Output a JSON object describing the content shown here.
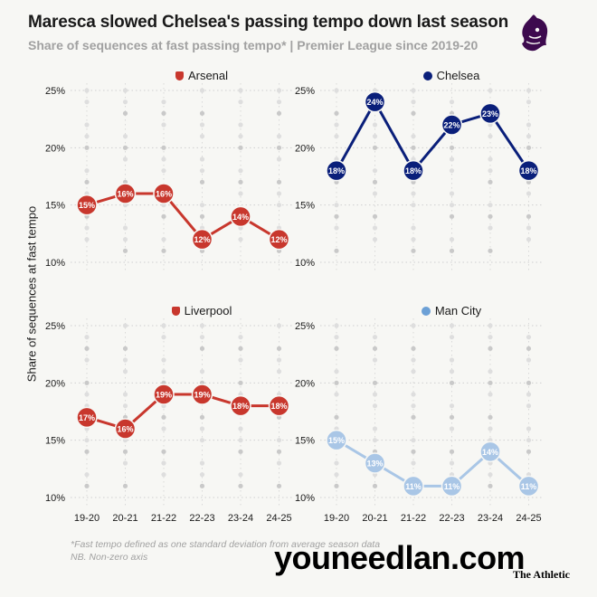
{
  "title": "Maresca slowed Chelsea's passing tempo down last season",
  "subtitle": "Share of sequences at fast passing tempo* | Premier League since 2019-20",
  "notes": {
    "line1": "*Fast tempo defined as one standard deviation from average season data",
    "line2": "NB. Non-zero axis"
  },
  "watermark": "youneedlan.com",
  "brand": "The Athletic",
  "icons": {
    "league_logo": "premier-league-lion-icon",
    "club_badges": [
      "arsenal-badge-icon",
      "chelsea-badge-icon",
      "liverpool-badge-icon",
      "man-city-badge-icon"
    ]
  },
  "colors": {
    "background": "#f7f7f4",
    "grid": "#cfcfcf",
    "background_dots": "#d3d3d3"
  },
  "chart_data": [
    {
      "type": "line",
      "title": "Arsenal",
      "color": "#c8372d",
      "categories": [
        "19-20",
        "20-21",
        "21-22",
        "22-23",
        "23-24",
        "24-25"
      ],
      "values": [
        15,
        16,
        16,
        12,
        14,
        12
      ],
      "data_labels": [
        "15%",
        "16%",
        "16%",
        "12%",
        "14%",
        "12%"
      ],
      "ylabel": "Share of sequences at fast tempo",
      "ylim": [
        10,
        25
      ],
      "yticks": [
        "10%",
        "15%",
        "20%",
        "25%"
      ]
    },
    {
      "type": "line",
      "title": "Chelsea",
      "color": "#0a1f7a",
      "categories": [
        "19-20",
        "20-21",
        "21-22",
        "22-23",
        "23-24",
        "24-25"
      ],
      "values": [
        18,
        24,
        18,
        22,
        23,
        18
      ],
      "data_labels": [
        "18%",
        "24%",
        "18%",
        "22%",
        "23%",
        "18%"
      ],
      "ylim": [
        10,
        25
      ],
      "yticks": [
        "10%",
        "15%",
        "20%",
        "25%"
      ]
    },
    {
      "type": "line",
      "title": "Liverpool",
      "color": "#c8372d",
      "categories": [
        "19-20",
        "20-21",
        "21-22",
        "22-23",
        "23-24",
        "24-25"
      ],
      "values": [
        17,
        16,
        19,
        19,
        18,
        18
      ],
      "data_labels": [
        "17%",
        "16%",
        "19%",
        "19%",
        "18%",
        "18%"
      ],
      "ylim": [
        10,
        25
      ],
      "yticks": [
        "10%",
        "15%",
        "20%",
        "25%"
      ]
    },
    {
      "type": "line",
      "title": "Man City",
      "color": "#a9c6e6",
      "categories": [
        "19-20",
        "20-21",
        "21-22",
        "22-23",
        "23-24",
        "24-25"
      ],
      "values": [
        15,
        13,
        11,
        11,
        14,
        11
      ],
      "data_labels": [
        "15%",
        "13%",
        "11%",
        "11%",
        "14%",
        "11%"
      ],
      "ylim": [
        10,
        25
      ],
      "yticks": [
        "10%",
        "15%",
        "20%",
        "25%"
      ]
    }
  ]
}
